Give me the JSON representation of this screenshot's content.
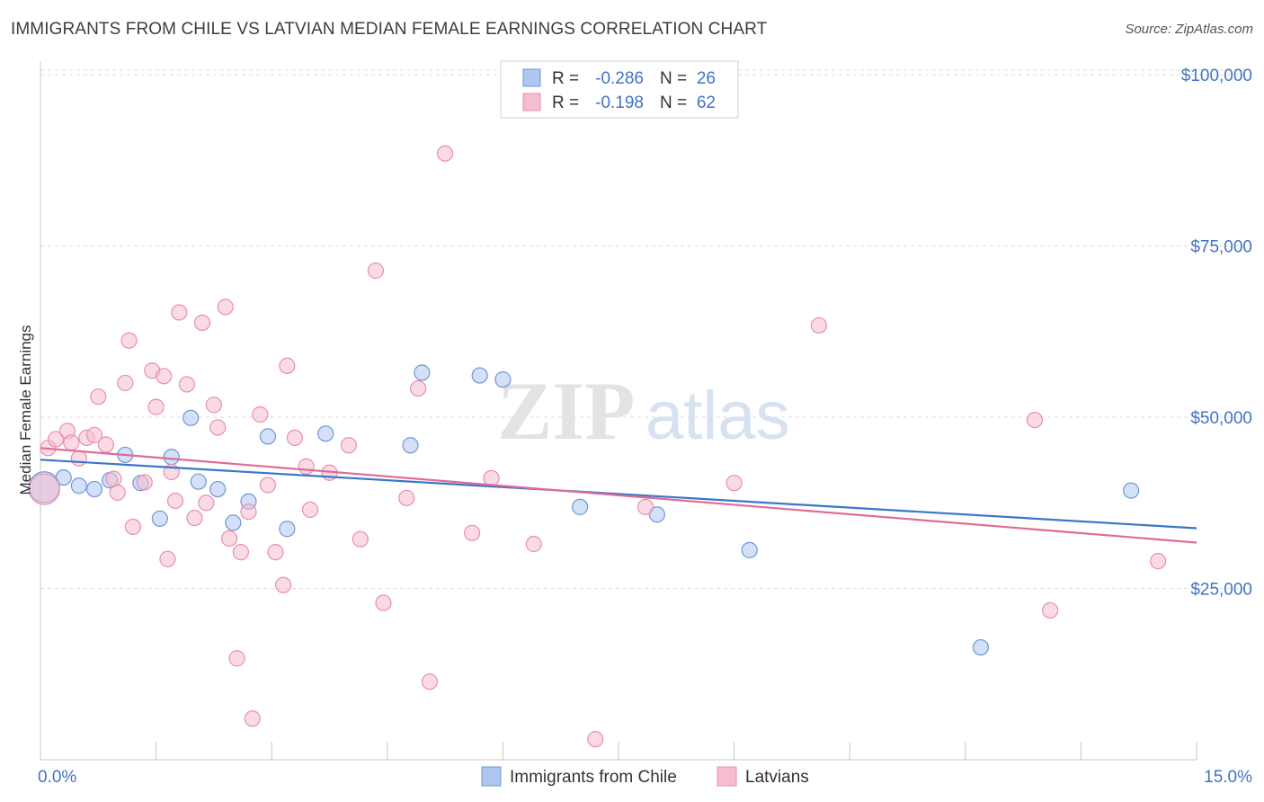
{
  "title": "IMMIGRANTS FROM CHILE VS LATVIAN MEDIAN FEMALE EARNINGS CORRELATION CHART",
  "source": "Source: ZipAtlas.com",
  "watermark": {
    "zip": "ZIP",
    "atlas": "atlas"
  },
  "chart_data": {
    "type": "scatter",
    "xlabel": "",
    "ylabel": "Median Female Earnings",
    "xlim": [
      0,
      15
    ],
    "ylim": [
      0,
      105000
    ],
    "x_tick_labels": [
      "0.0%",
      "15.0%"
    ],
    "y_ticks": [
      25000,
      50000,
      75000,
      100000
    ],
    "y_tick_labels": [
      "$25,000",
      "$50,000",
      "$75,000",
      "$100,000"
    ],
    "grid": true,
    "legend_stats": [
      {
        "r_label": "R = ",
        "r_value": "-0.286",
        "n_label": "N = ",
        "n_value": "26",
        "color": "#aec7f0",
        "stroke": "#6f97d8"
      },
      {
        "r_label": "R = ",
        "r_value": "-0.198",
        "n_label": "N = ",
        "n_value": "62",
        "color": "#f6bcd0",
        "stroke": "#e890ad"
      }
    ],
    "series": [
      {
        "name": "Immigrants from Chile",
        "color": "#aec7f0",
        "stroke": "#6f97d8",
        "line_color": "#3a76c8",
        "trend": [
          [
            0,
            43800
          ],
          [
            15,
            33800
          ]
        ],
        "points": [
          [
            0.05,
            39800
          ],
          [
            0.3,
            41200
          ],
          [
            0.5,
            40000
          ],
          [
            0.7,
            39500
          ],
          [
            0.9,
            40800
          ],
          [
            1.1,
            44500
          ],
          [
            1.3,
            40400
          ],
          [
            1.55,
            35200
          ],
          [
            1.7,
            44200
          ],
          [
            1.95,
            49900
          ],
          [
            2.05,
            40600
          ],
          [
            2.3,
            39500
          ],
          [
            2.5,
            34600
          ],
          [
            2.7,
            37700
          ],
          [
            2.95,
            47200
          ],
          [
            3.2,
            33700
          ],
          [
            3.7,
            47600
          ],
          [
            4.8,
            45900
          ],
          [
            4.95,
            56500
          ],
          [
            5.7,
            56100
          ],
          [
            6.0,
            55500
          ],
          [
            7.0,
            36900
          ],
          [
            8.0,
            35800
          ],
          [
            9.2,
            30600
          ],
          [
            12.2,
            16400
          ],
          [
            14.15,
            39300
          ]
        ]
      },
      {
        "name": "Latvians",
        "color": "#f6bcd0",
        "stroke": "#e890ad",
        "line_color": "#e06b97",
        "trend": [
          [
            0,
            45500
          ],
          [
            15,
            31700
          ]
        ],
        "points": [
          [
            0.05,
            39500
          ],
          [
            0.1,
            45500
          ],
          [
            0.2,
            46800
          ],
          [
            0.35,
            48000
          ],
          [
            0.4,
            46300
          ],
          [
            0.5,
            44000
          ],
          [
            0.6,
            47000
          ],
          [
            0.7,
            47400
          ],
          [
            0.75,
            53000
          ],
          [
            0.85,
            46000
          ],
          [
            0.95,
            41000
          ],
          [
            1.0,
            39000
          ],
          [
            1.1,
            55000
          ],
          [
            1.15,
            61200
          ],
          [
            1.2,
            34000
          ],
          [
            1.35,
            40500
          ],
          [
            1.45,
            56800
          ],
          [
            1.5,
            51500
          ],
          [
            1.6,
            56000
          ],
          [
            1.65,
            29300
          ],
          [
            1.75,
            37800
          ],
          [
            1.8,
            65300
          ],
          [
            1.9,
            54800
          ],
          [
            2.0,
            35300
          ],
          [
            2.1,
            63800
          ],
          [
            2.15,
            37500
          ],
          [
            2.25,
            51800
          ],
          [
            2.3,
            48500
          ],
          [
            2.4,
            66100
          ],
          [
            2.45,
            32300
          ],
          [
            2.55,
            14800
          ],
          [
            2.6,
            30300
          ],
          [
            2.7,
            36200
          ],
          [
            2.75,
            6000
          ],
          [
            2.85,
            50400
          ],
          [
            2.95,
            40100
          ],
          [
            3.05,
            30300
          ],
          [
            3.15,
            25500
          ],
          [
            3.2,
            57500
          ],
          [
            3.3,
            47000
          ],
          [
            3.45,
            42800
          ],
          [
            3.75,
            41900
          ],
          [
            4.0,
            45900
          ],
          [
            4.15,
            32200
          ],
          [
            4.35,
            71400
          ],
          [
            4.45,
            22900
          ],
          [
            4.75,
            38200
          ],
          [
            4.9,
            54200
          ],
          [
            5.05,
            11400
          ],
          [
            5.25,
            88500
          ],
          [
            5.6,
            33100
          ],
          [
            5.85,
            41100
          ],
          [
            6.4,
            31500
          ],
          [
            7.2,
            3000
          ],
          [
            7.85,
            36900
          ],
          [
            9.0,
            40400
          ],
          [
            10.1,
            63400
          ],
          [
            12.9,
            49600
          ],
          [
            13.1,
            21800
          ],
          [
            14.5,
            29000
          ],
          [
            1.7,
            42000
          ],
          [
            3.5,
            36500
          ]
        ]
      }
    ]
  }
}
